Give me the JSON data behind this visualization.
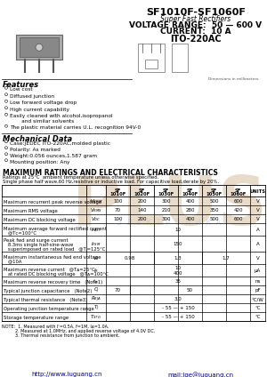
{
  "title": "SF1010F-SF1060F",
  "subtitle": "Super Fast Rectifiers",
  "voltage": "VOLTAGE RANGE:  50 — 600 V",
  "current": "CURRENT:  10 A",
  "package": "ITO-220AC",
  "features_title": "Features",
  "features": [
    "Low cost",
    "Diffused junction",
    "Low forward voltage drop",
    "High current capability",
    "Easily cleaned with alcohol,isopropanol\n       and similar solvents",
    "The plastic material carries U.L. recognition 94V-0"
  ],
  "mech_title": "Mechanical Data",
  "mech": [
    "Case:JEDEC ITO-220AC,molded plastic",
    "Polarity: As marked",
    "Weight:0.056 ounces,1.587 gram",
    "Mounting position: Any"
  ],
  "ratings_title": "MAXIMUM RATINGS AND ELECTRICAL CHARACTERISTICS",
  "ratings_note1": "Ratings at 25°C  ambient temperature unless otherwise specified.",
  "ratings_note2": "Single phase half wave,60 Hz,resistive or inductive load. For capacitive load,derate by 20%.",
  "col_headers": [
    "SF\n1010F",
    "SF\n1020F",
    "SF\n1030F",
    "SF\n1040F",
    "SF\n1050F",
    "SF\n1060F",
    "UNITS"
  ],
  "bg_color": "#ffffff",
  "watermark_color": "#d4b896",
  "watermark_text_color": "#b8c8d8",
  "footer_color": "#000080"
}
